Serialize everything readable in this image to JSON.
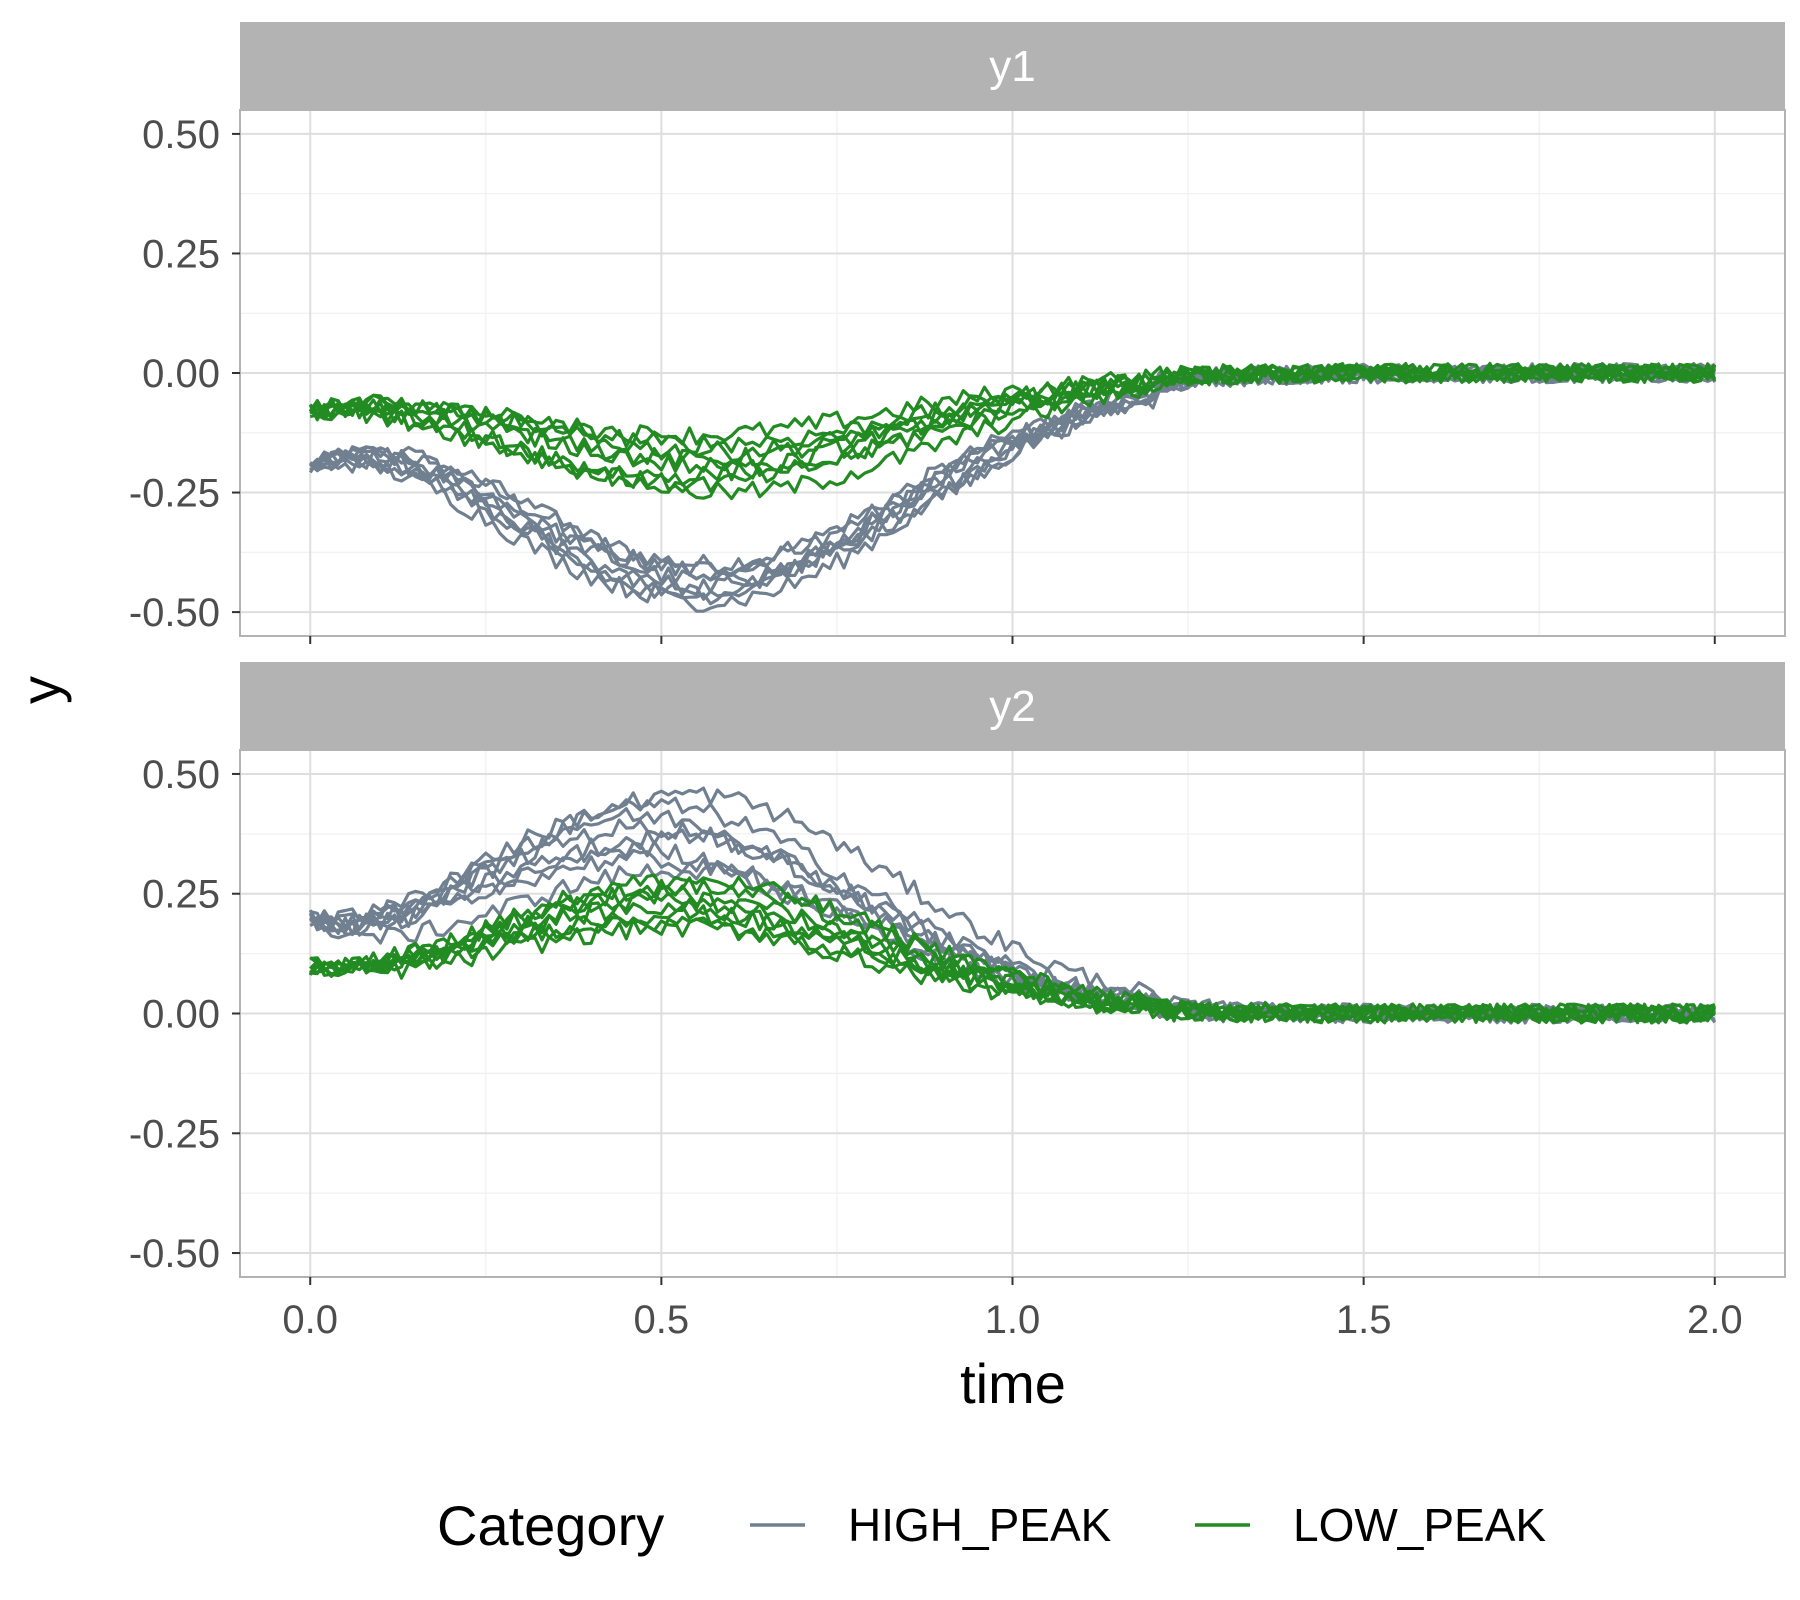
{
  "chart_data": {
    "type": "line",
    "x_label": "time",
    "y_label": "y",
    "xlim": [
      -0.1,
      2.1
    ],
    "ylim": [
      -0.55,
      0.55
    ],
    "x_ticks": [
      0.0,
      0.5,
      1.0,
      1.5,
      2.0
    ],
    "x_tick_labels": [
      "0.0",
      "0.5",
      "1.0",
      "1.5",
      "2.0"
    ],
    "y_ticks": [
      -0.5,
      -0.25,
      0.0,
      0.25,
      0.5
    ],
    "y_tick_labels": [
      "-0.50",
      "-0.25",
      "0.00",
      "0.25",
      "0.50"
    ],
    "grid": true,
    "legend": {
      "title": "Category",
      "position": "bottom",
      "entries": [
        {
          "label": "HIGH_PEAK",
          "color": "#708090"
        },
        {
          "label": "LOW_PEAK",
          "color": "#228B22"
        }
      ]
    },
    "time_range": [
      0.0,
      2.0
    ],
    "lines_per_category": 8,
    "noise_amplitude": 0.02,
    "panels": [
      {
        "strip": "y1",
        "series": [
          {
            "name": "HIGH_PEAK",
            "color": "#708090",
            "peak_time": 0.55,
            "peak_width": 0.3,
            "amplitude_range": [
              -0.4,
              -0.48
            ],
            "offset_at_zero": -0.2
          },
          {
            "name": "LOW_PEAK",
            "color": "#228B22",
            "peak_time": 0.55,
            "peak_width": 0.3,
            "amplitude_range": [
              -0.13,
              -0.25
            ],
            "offset_at_zero": -0.08
          }
        ]
      },
      {
        "strip": "y2",
        "series": [
          {
            "name": "HIGH_PEAK",
            "color": "#708090",
            "peak_time": 0.5,
            "peak_width": 0.3,
            "amplitude_range": [
              0.3,
              0.46
            ],
            "offset_at_zero": 0.2
          },
          {
            "name": "LOW_PEAK",
            "color": "#228B22",
            "peak_time": 0.5,
            "peak_width": 0.3,
            "amplitude_range": [
              0.18,
              0.28
            ],
            "offset_at_zero": 0.1
          }
        ]
      }
    ]
  }
}
